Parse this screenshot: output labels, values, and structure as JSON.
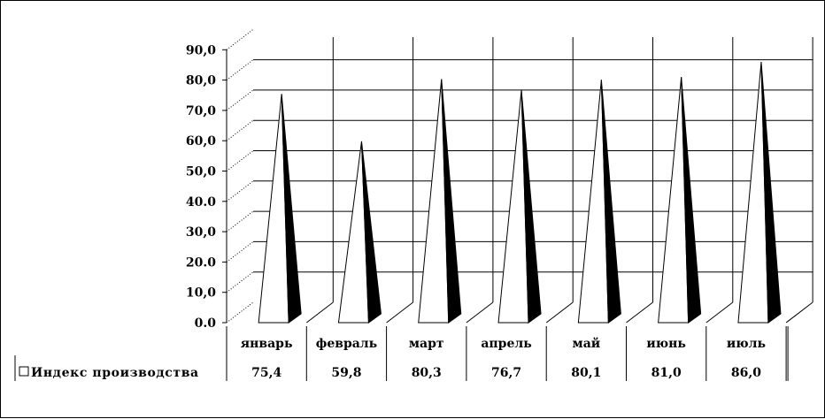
{
  "chart_data": {
    "type": "bar",
    "bar_shape": "pyramid-3d",
    "categories": [
      "январь",
      "февраль",
      "март",
      "апрель",
      "май",
      "июнь",
      "июль"
    ],
    "series": [
      {
        "name": "Индекс производства",
        "values": [
          75.4,
          59.8,
          80.3,
          76.7,
          80.1,
          81.0,
          86.0
        ]
      }
    ],
    "value_labels": [
      "75,4",
      "59,8",
      "80,3",
      "76,7",
      "80,1",
      "81,0",
      "86,0"
    ],
    "yticks": [
      0,
      10,
      20,
      30,
      40,
      50,
      60,
      70,
      80,
      90
    ],
    "ytick_labels": [
      "0.0",
      "10,0",
      "20.0",
      "30,0",
      "40.0",
      "50,0",
      "60,0",
      "70,0",
      "80,0",
      "90,0"
    ],
    "ylim": [
      0,
      90
    ],
    "title": "",
    "xlabel": "",
    "ylabel": "",
    "grid": true,
    "data_table": true,
    "legend": "bottom-left, inside data table",
    "colors": {
      "face": "#ffffff",
      "shadow": "#000000",
      "grid": "#000000"
    }
  }
}
